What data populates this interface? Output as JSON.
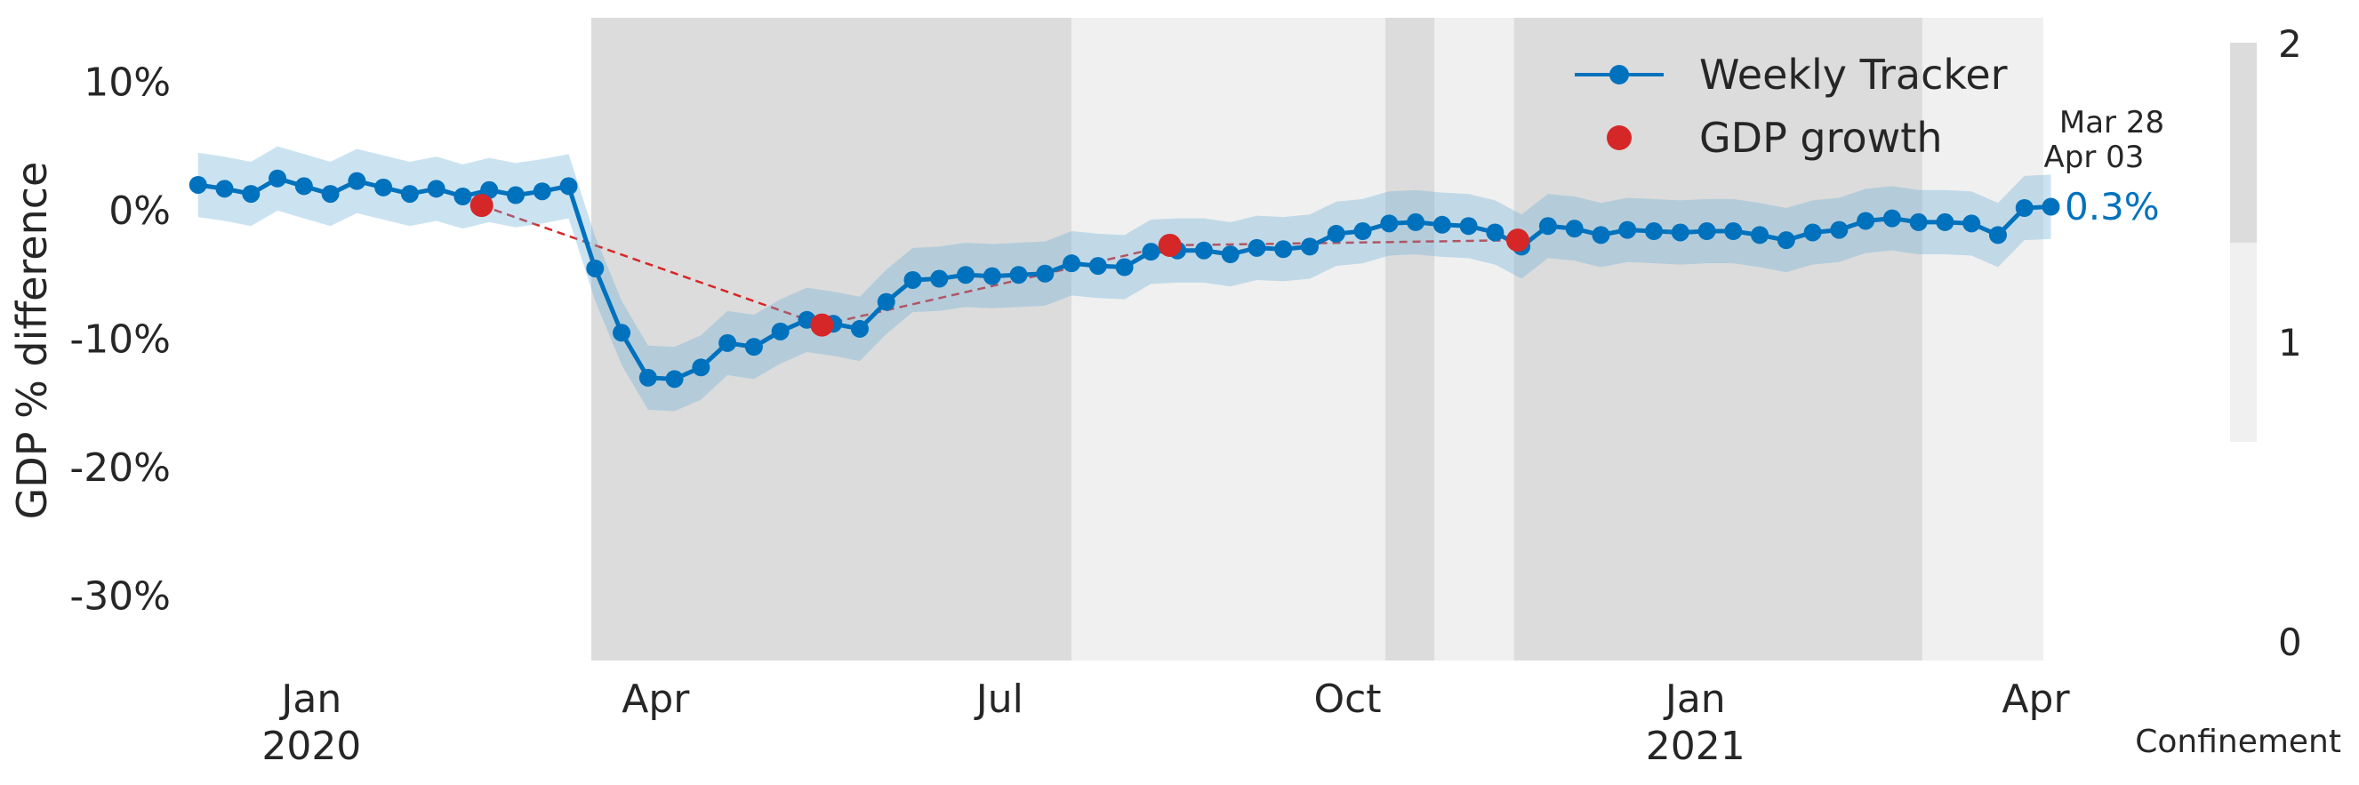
{
  "chart_data": {
    "type": "line",
    "ylabel": "GDP % difference",
    "ylim": [
      -35,
      15
    ],
    "yticks": [
      10,
      0,
      -10,
      -20,
      -30
    ],
    "ytick_labels": [
      "10%",
      "0%",
      "-10%",
      "-20%",
      "-30%"
    ],
    "xlim": [
      "2019-11-29",
      "2021-04-03"
    ],
    "xticks": [
      {
        "date": "2020-01-01",
        "label": "Jan",
        "year": "2020"
      },
      {
        "date": "2020-04-01",
        "label": "Apr",
        "year": ""
      },
      {
        "date": "2020-07-01",
        "label": "Jul",
        "year": ""
      },
      {
        "date": "2020-10-01",
        "label": "Oct",
        "year": ""
      },
      {
        "date": "2021-01-01",
        "label": "Jan",
        "year": "2021"
      },
      {
        "date": "2021-04-01",
        "label": "Apr",
        "year": ""
      }
    ],
    "confinement_periods": [
      {
        "start": "2020-03-15",
        "end": "2020-07-20",
        "level": 2
      },
      {
        "start": "2020-07-20",
        "end": "2020-10-11",
        "level": 1
      },
      {
        "start": "2020-10-11",
        "end": "2020-10-24",
        "level": 2
      },
      {
        "start": "2020-10-24",
        "end": "2020-11-14",
        "level": 1
      },
      {
        "start": "2020-11-14",
        "end": "2021-03-02",
        "level": 2
      },
      {
        "start": "2021-03-02",
        "end": "2021-04-03",
        "level": 1
      }
    ],
    "colorbar": {
      "label": "Confinement",
      "ticks": [
        "0",
        "1",
        "2"
      ]
    },
    "legend": {
      "placement": "top-right",
      "entries": [
        "Weekly Tracker",
        "GDP growth"
      ]
    },
    "series": [
      {
        "name": "Weekly Tracker",
        "color": "#0072bd",
        "band_halfwidth": 2.5,
        "start_date": "2019-12-02",
        "step_days": 7,
        "values": [
          2.0,
          1.7,
          1.3,
          2.5,
          1.9,
          1.3,
          2.3,
          1.8,
          1.3,
          1.7,
          1.1,
          1.6,
          1.2,
          1.5,
          1.9,
          -4.5,
          -9.5,
          -13.0,
          -13.1,
          -12.2,
          -10.3,
          -10.6,
          -9.4,
          -8.5,
          -8.8,
          -9.2,
          -7.1,
          -5.4,
          -5.3,
          -5.0,
          -5.1,
          -5.0,
          -4.9,
          -4.1,
          -4.3,
          -4.4,
          -3.2,
          -3.1,
          -3.1,
          -3.4,
          -2.9,
          -3.0,
          -2.8,
          -1.8,
          -1.6,
          -1.0,
          -0.9,
          -1.1,
          -1.2,
          -1.7,
          -2.8,
          -1.2,
          -1.4,
          -1.9,
          -1.5,
          -1.6,
          -1.7,
          -1.6,
          -1.6,
          -1.9,
          -2.3,
          -1.7,
          -1.5,
          -0.8,
          -0.6,
          -0.9,
          -0.9,
          -1.0,
          -1.9,
          0.2,
          0.3
        ]
      },
      {
        "name": "GDP growth",
        "color": "#d62728",
        "dates": [
          "2020-02-15",
          "2020-05-15",
          "2020-08-15",
          "2020-11-15"
        ],
        "values": [
          0.4,
          -8.9,
          -2.7,
          -2.3
        ]
      }
    ],
    "annotation": {
      "dates": [
        "Mar 28",
        "Apr 03"
      ],
      "value": "0.3%"
    }
  }
}
